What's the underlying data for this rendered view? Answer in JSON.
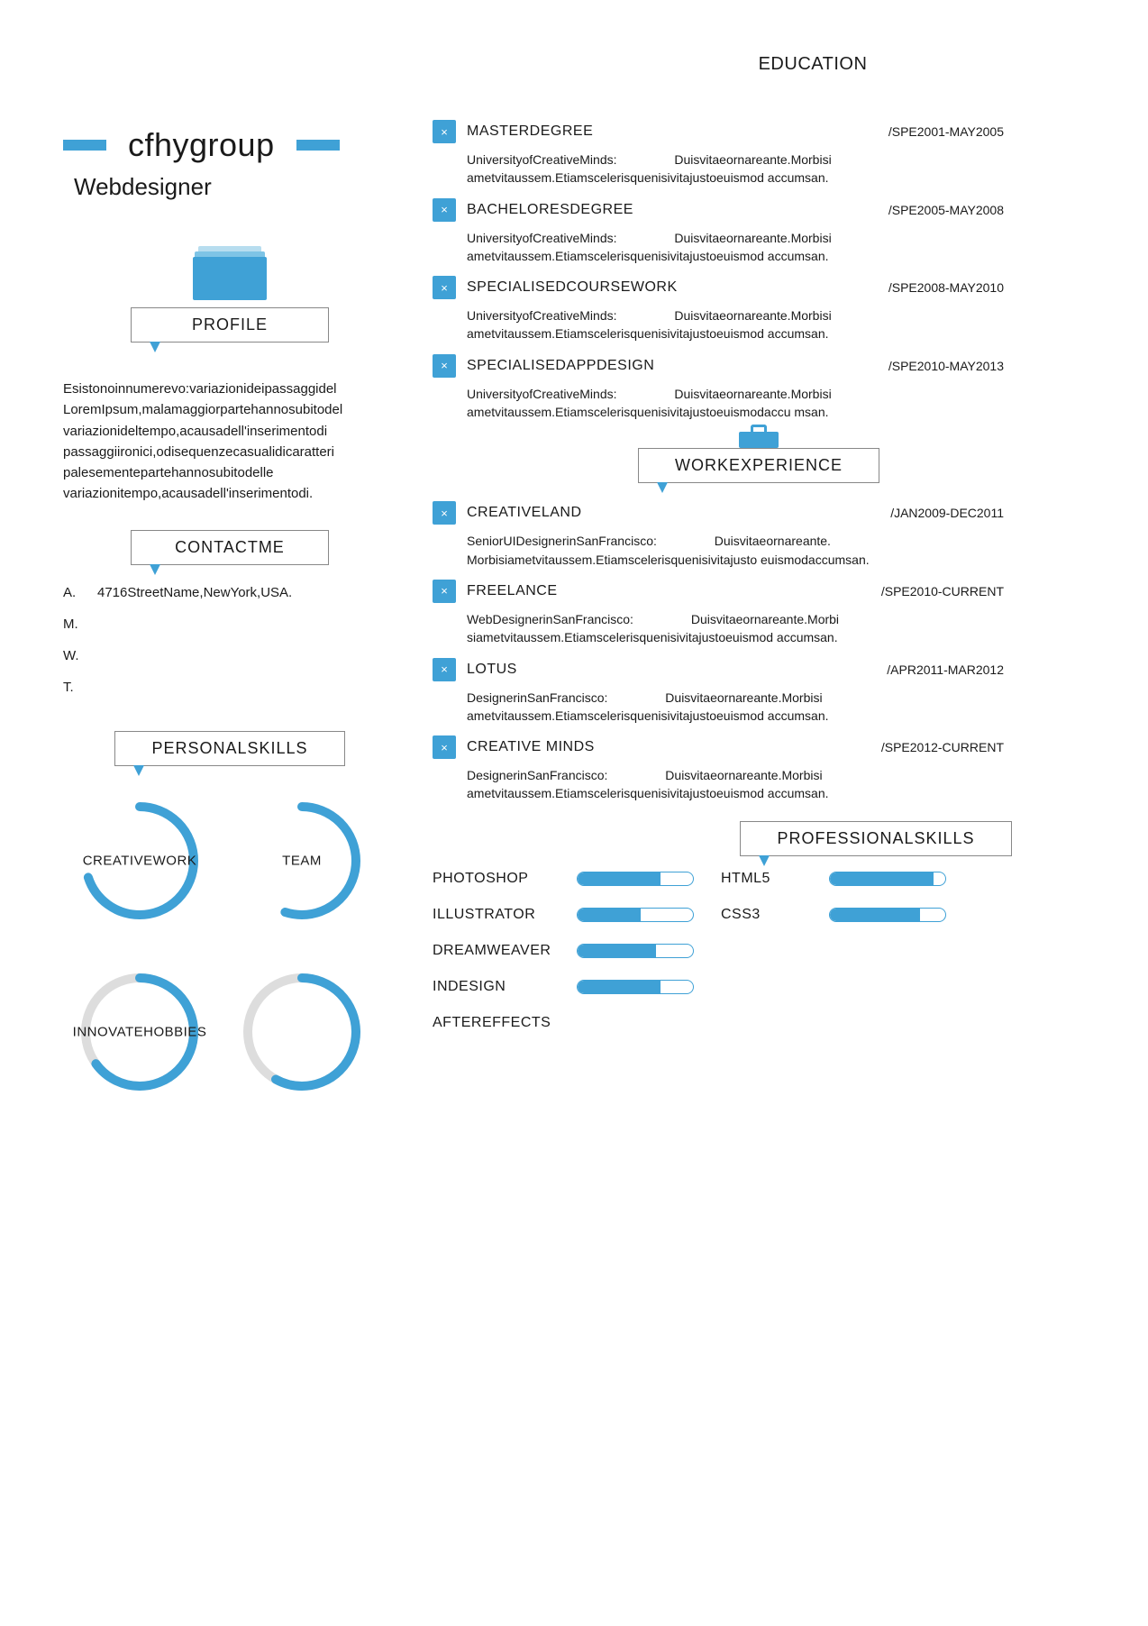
{
  "colors": {
    "accent": "#3fa1d6",
    "accent_light": "#b7ddef",
    "ring_bg": "#dddddd",
    "text": "#1a1a1a"
  },
  "header": {
    "name": "cfhygroup",
    "subtitle": "Webdesigner"
  },
  "profile": {
    "heading": "PROFILE",
    "text": "Esistonoinnumerevo:variazionideipassaggidel LoremIpsum,malamaggiorpartehannosubitodel variazionideltempo,acausadell'inserimentodi passaggiironici,odisequenzecasualidicaratteri palesementepartehannosubitodelle variazionitempo,acausadell'inserimentodi."
  },
  "contact": {
    "heading": "CONTACTME",
    "rows": [
      {
        "k": "A.",
        "v": "4716StreetName,NewYork,USA."
      },
      {
        "k": "M.",
        "v": ""
      },
      {
        "k": "W.",
        "v": ""
      },
      {
        "k": "T.",
        "v": ""
      }
    ]
  },
  "personal_skills": {
    "heading": "PERSONALSKILLS",
    "rings": [
      {
        "label": "CREATIVE",
        "percent": 70,
        "stroke": "#3fa1d6",
        "bg": "#ffffff",
        "label2": "WORK"
      },
      {
        "label": "TEAM",
        "percent": 55,
        "stroke": "#3fa1d6",
        "bg": "#ffffff"
      },
      {
        "label": "INNOVATE",
        "percent": 65,
        "stroke": "#3fa1d6",
        "bg": "#dddddd",
        "label2": "HOBBIES"
      },
      {
        "label": "",
        "percent": 58,
        "stroke": "#3fa1d6",
        "bg": "#dddddd"
      }
    ]
  },
  "education": {
    "heading": "EDUCATION",
    "entries": [
      {
        "title": "MASTERDEGREE",
        "dates": "/SPE2001-MAY2005",
        "lead": "UniversityofCreativeMinds:",
        "body": "Duisvitaeornareante.Morbisi ametvitaussem.Etiamscelerisquenisivitajustoeuismod accumsan."
      },
      {
        "title": "BACHELORESDEGREE",
        "dates": "/SPE2005-MAY2008",
        "lead": "UniversityofCreativeMinds:",
        "body": "Duisvitaeornareante.Morbisi ametvitaussem.Etiamscelerisquenisivitajustoeuismod accumsan."
      },
      {
        "title": "SPECIALISEDCOURSEWORK",
        "dates": "/SPE2008-MAY2010",
        "lead": "UniversityofCreativeMinds:",
        "body": "Duisvitaeornareante.Morbisi ametvitaussem.Etiamscelerisquenisivitajustoeuismod accumsan."
      },
      {
        "title": "SPECIALISEDAPPDESIGN",
        "dates": "/SPE2010-MAY2013",
        "lead": "UniversityofCreativeMinds:",
        "body": "Duisvitaeornareante.Morbisi ametvitaussem.Etiamscelerisquenisivitajustoeuismodaccu msan."
      }
    ]
  },
  "work": {
    "heading": "WORKEXPERIENCE",
    "entries": [
      {
        "title": "CREATIVELAND",
        "dates": "/JAN2009-DEC2011",
        "lead": "SeniorUIDesignerinSanFrancisco:",
        "body": "Duisvitaeornareante. Morbisiametvitaussem.Etiamscelerisquenisivitajusto euismodaccumsan."
      },
      {
        "title": "FREELANCE",
        "dates": "/SPE2010-CURRENT",
        "lead": "WebDesignerinSanFrancisco:",
        "body": "Duisvitaeornareante.Morbi siametvitaussem.Etiamscelerisquenisivitajustoeuismod accumsan."
      },
      {
        "title": "LOTUS",
        "dates": "/APR2011-MAR2012",
        "lead": "DesignerinSanFrancisco:",
        "body": "Duisvitaeornareante.Morbisi ametvitaussem.Etiamscelerisquenisivitajustoeuismod accumsan."
      },
      {
        "title": "CREATIVE    MINDS",
        "dates": "/SPE2012-CURRENT",
        "lead": "DesignerinSanFrancisco:",
        "body": "Duisvitaeornareante.Morbisi ametvitaussem.Etiamscelerisquenisivitajustoeuismod accumsan."
      }
    ]
  },
  "professional_skills": {
    "heading": "PROFESSIONALSKILLS",
    "left": [
      {
        "name": "PHOTOSHOP",
        "percent": 72
      },
      {
        "name": "ILLUSTRATOR",
        "percent": 55
      },
      {
        "name": "DREAMWEAVER",
        "percent": 68
      },
      {
        "name": "INDESIGN",
        "percent": 72
      },
      {
        "name": "AFTEREFFECTS",
        "percent": 0
      }
    ],
    "right": [
      {
        "name": "HTML5",
        "percent": 90
      },
      {
        "name": "CSS3",
        "percent": 78
      }
    ]
  }
}
